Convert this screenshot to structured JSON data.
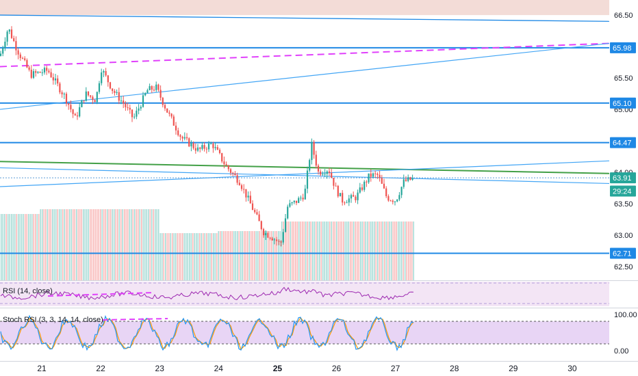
{
  "chart_data": {
    "type": "candlestick",
    "price_axis": {
      "ticks": [
        "66.50",
        "66.00",
        "65.50",
        "65.00",
        "64.50",
        "64.00",
        "63.50",
        "63.00",
        "62.50"
      ],
      "range": [
        62.28,
        66.74
      ]
    },
    "date_axis": {
      "labels": [
        "21",
        "22",
        "23",
        "24",
        "25",
        "26",
        "27",
        "28",
        "29",
        "30"
      ],
      "bold": [
        "25"
      ]
    },
    "price_tags": [
      {
        "label": "65.98",
        "value": 65.98,
        "kind": "level"
      },
      {
        "label": "65.10",
        "value": 65.1,
        "kind": "level"
      },
      {
        "label": "64.47",
        "value": 64.47,
        "kind": "level"
      },
      {
        "label": "63.91",
        "value": 63.91,
        "kind": "level"
      },
      {
        "label": "29:24",
        "value": 63.7,
        "kind": "timer"
      },
      {
        "label": "62.71",
        "value": 62.71,
        "kind": "level"
      }
    ],
    "horizontal_levels": [
      65.98,
      65.1,
      64.47,
      62.71
    ],
    "resistance_zone": [
      66.5,
      66.74
    ],
    "colors": {
      "up": "#26a69a",
      "down": "#ef5350",
      "level": "#1e88e5",
      "trend": "#42a5f5",
      "magenta": "#e040fb",
      "green": "#43a047",
      "zone": "#f3dcd7",
      "rsi_line": "#9c27b0",
      "stoch_k": "#2196f3",
      "stoch_d": "#ff9800"
    },
    "rsi_panel": {
      "label": "RSI (14, close)"
    },
    "stoch_panel": {
      "label": "Stoch RSI (3, 3, 14, 14, close)",
      "ticks": [
        "100.00",
        "0.00"
      ]
    }
  }
}
